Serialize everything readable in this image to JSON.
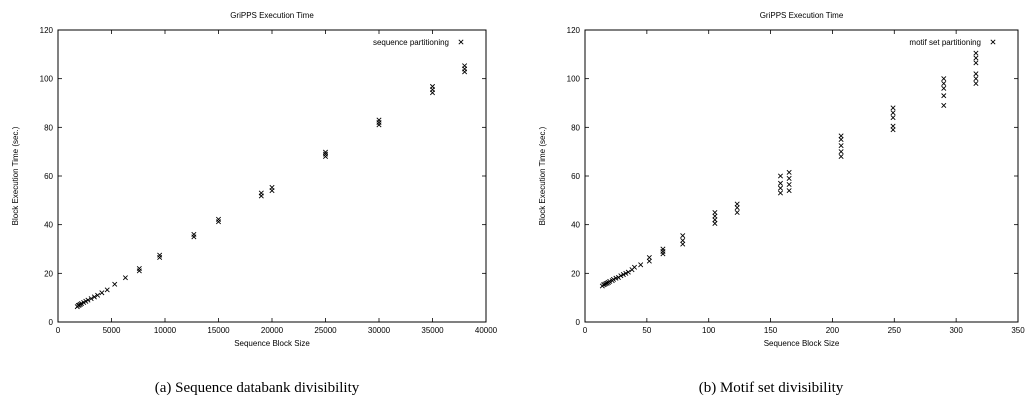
{
  "captions": {
    "a": "(a) Sequence databank divisibility",
    "b": "(b) Motif set divisibility"
  },
  "chart_data": [
    {
      "type": "scatter",
      "title": "GriPPS Execution Time",
      "xlabel": "Sequence Block Size",
      "ylabel": "Block Execution Time (sec.)",
      "xlim": [
        0,
        40000
      ],
      "ylim": [
        0,
        120
      ],
      "xticks": [
        0,
        5000,
        10000,
        15000,
        20000,
        25000,
        30000,
        35000,
        40000
      ],
      "yticks": [
        0,
        20,
        40,
        60,
        80,
        100,
        120
      ],
      "legend_position": "top-right",
      "grid": false,
      "series": [
        {
          "name": "sequence partitioning",
          "marker": "x",
          "color": "#000000",
          "points": [
            [
              1800,
              6.3
            ],
            [
              1900,
              6.8
            ],
            [
              2000,
              7.0
            ],
            [
              2100,
              7.3
            ],
            [
              2200,
              7.6
            ],
            [
              2400,
              8.0
            ],
            [
              2600,
              8.5
            ],
            [
              2800,
              9.0
            ],
            [
              3100,
              9.6
            ],
            [
              3400,
              10.3
            ],
            [
              3700,
              11.0
            ],
            [
              4100,
              12.0
            ],
            [
              4600,
              13.2
            ],
            [
              5300,
              15.5
            ],
            [
              6300,
              18.2
            ],
            [
              7600,
              21.0
            ],
            [
              7600,
              22.0
            ],
            [
              9500,
              26.5
            ],
            [
              9500,
              27.5
            ],
            [
              12700,
              35.0
            ],
            [
              12700,
              36.0
            ],
            [
              15000,
              41.2
            ],
            [
              15000,
              42.2
            ],
            [
              19000,
              51.8
            ],
            [
              19000,
              53.0
            ],
            [
              20000,
              54.0
            ],
            [
              20000,
              55.3
            ],
            [
              25000,
              68.0
            ],
            [
              25000,
              69.0
            ],
            [
              25000,
              69.8
            ],
            [
              30000,
              81.0
            ],
            [
              30000,
              82.0
            ],
            [
              30000,
              83.0
            ],
            [
              35000,
              94.2
            ],
            [
              35000,
              95.5
            ],
            [
              35000,
              96.8
            ],
            [
              38000,
              102.8
            ],
            [
              38000,
              104.0
            ],
            [
              38000,
              105.3
            ]
          ]
        }
      ]
    },
    {
      "type": "scatter",
      "title": "GriPPS Execution Time",
      "xlabel": "Sequence Block Size",
      "ylabel": "Block Execution Time (sec.)",
      "xlim": [
        0,
        350
      ],
      "ylim": [
        0,
        120
      ],
      "xticks": [
        0,
        50,
        100,
        150,
        200,
        250,
        300,
        350
      ],
      "yticks": [
        0,
        20,
        40,
        60,
        80,
        100,
        120
      ],
      "legend_position": "top-right",
      "grid": false,
      "series": [
        {
          "name": "motif set partitioning",
          "marker": "x",
          "color": "#000000",
          "points": [
            [
              14,
              14.8
            ],
            [
              15,
              15.3
            ],
            [
              16,
              15.5
            ],
            [
              17,
              15.8
            ],
            [
              18,
              16.0
            ],
            [
              19,
              16.3
            ],
            [
              20,
              16.7
            ],
            [
              22,
              17.0
            ],
            [
              23,
              17.5
            ],
            [
              25,
              18.0
            ],
            [
              27,
              18.3
            ],
            [
              29,
              19.0
            ],
            [
              31,
              19.5
            ],
            [
              33,
              20.0
            ],
            [
              35,
              20.5
            ],
            [
              38,
              21.5
            ],
            [
              40,
              22.5
            ],
            [
              45,
              23.5
            ],
            [
              52,
              25.0
            ],
            [
              52,
              26.5
            ],
            [
              63,
              28.0
            ],
            [
              63,
              29.0
            ],
            [
              63,
              30.0
            ],
            [
              79,
              32.0
            ],
            [
              79,
              33.5
            ],
            [
              79,
              35.5
            ],
            [
              105,
              40.5
            ],
            [
              105,
              42.0
            ],
            [
              105,
              43.5
            ],
            [
              105,
              45.0
            ],
            [
              123,
              45.0
            ],
            [
              123,
              47.0
            ],
            [
              123,
              48.5
            ],
            [
              158,
              53.0
            ],
            [
              158,
              55.0
            ],
            [
              158,
              57.0
            ],
            [
              158,
              60.0
            ],
            [
              165,
              54.0
            ],
            [
              165,
              56.5
            ],
            [
              165,
              59.0
            ],
            [
              165,
              61.5
            ],
            [
              207,
              68.0
            ],
            [
              207,
              70.0
            ],
            [
              207,
              72.5
            ],
            [
              207,
              75.0
            ],
            [
              207,
              76.5
            ],
            [
              249,
              79.0
            ],
            [
              249,
              80.5
            ],
            [
              249,
              84.0
            ],
            [
              249,
              86.0
            ],
            [
              249,
              88.0
            ],
            [
              290,
              89.0
            ],
            [
              290,
              93.0
            ],
            [
              290,
              96.0
            ],
            [
              290,
              98.0
            ],
            [
              290,
              100.0
            ],
            [
              316,
              98.0
            ],
            [
              316,
              100.0
            ],
            [
              316,
              102.0
            ],
            [
              316,
              106.5
            ],
            [
              316,
              108.5
            ],
            [
              316,
              110.5
            ]
          ]
        }
      ]
    }
  ]
}
